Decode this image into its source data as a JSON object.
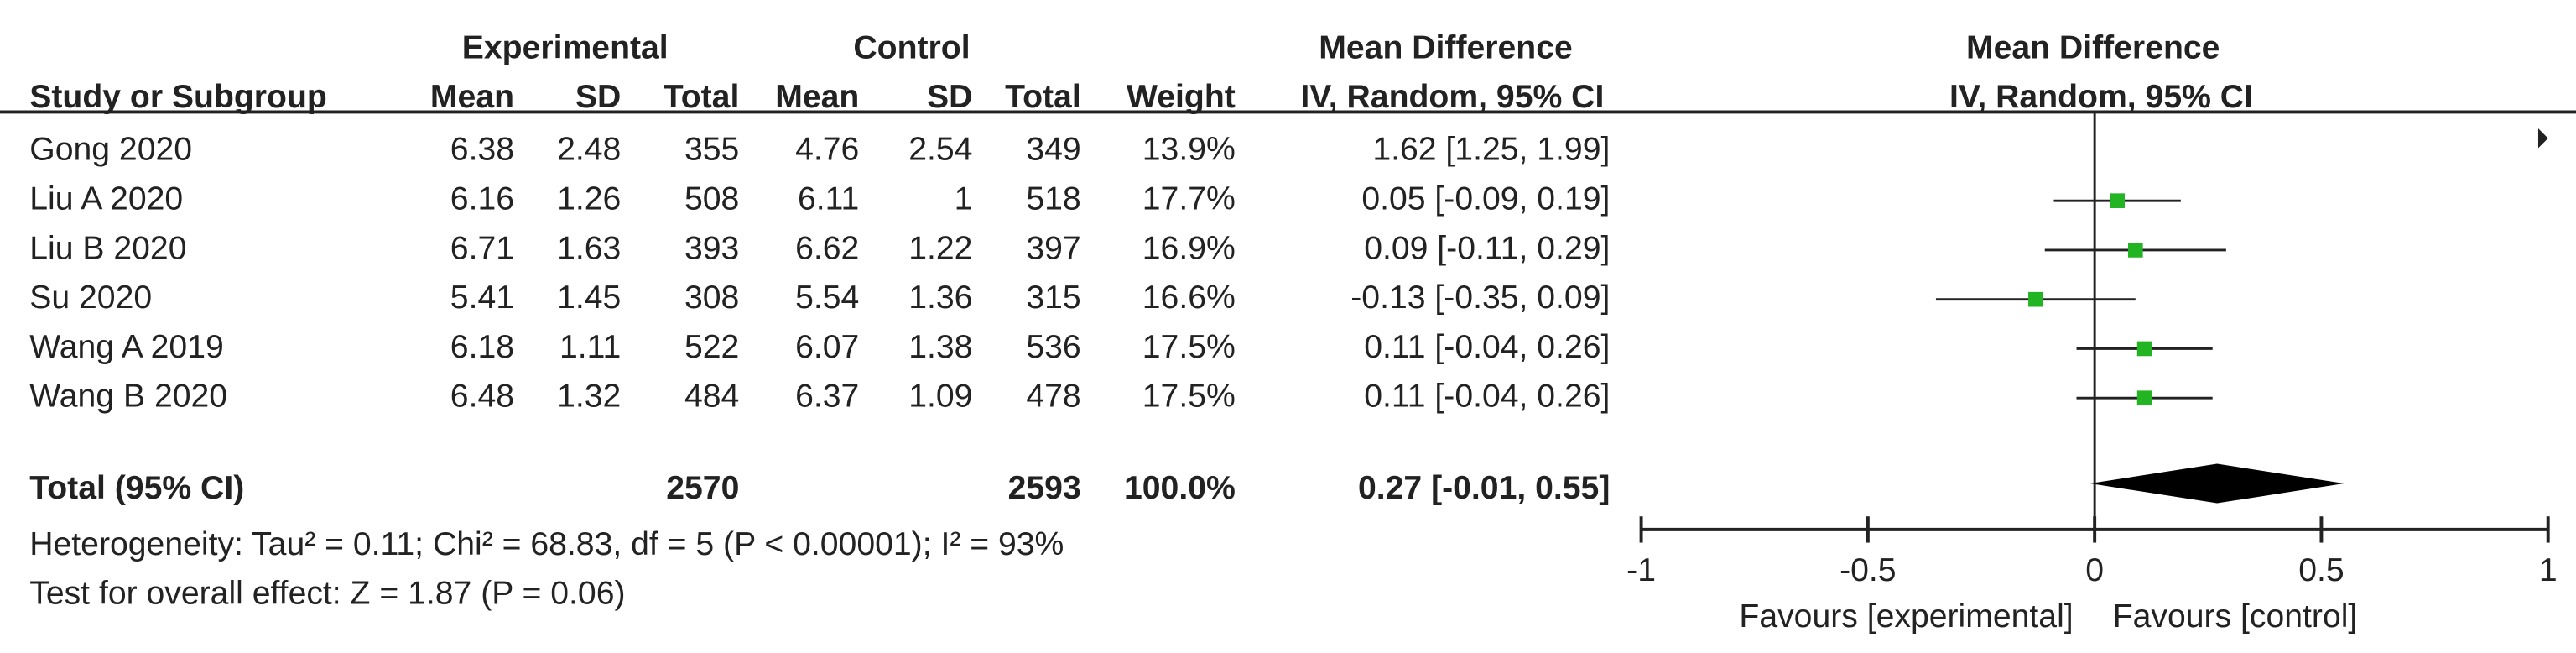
{
  "chart_data": {
    "type": "forest",
    "group_headers": [
      "Experimental",
      "Control"
    ],
    "effect_header": [
      "Mean Difference",
      "IV, Random, 95% CI"
    ],
    "plot_header": [
      "Mean Difference",
      "IV, Random, 95% CI"
    ],
    "columns": [
      "Study or Subgroup",
      "Mean",
      "SD",
      "Total",
      "Mean",
      "SD",
      "Total",
      "Weight"
    ],
    "rows": [
      [
        "Gong 2020",
        "6.38",
        "2.48",
        "355",
        "4.76",
        "2.54",
        "349",
        "13.9%",
        "1.62 [1.25, 1.99]"
      ],
      [
        "Liu A 2020",
        "6.16",
        "1.26",
        "508",
        "6.11",
        "1",
        "518",
        "17.7%",
        "0.05 [-0.09, 0.19]"
      ],
      [
        "Liu B 2020",
        "6.71",
        "1.63",
        "393",
        "6.62",
        "1.22",
        "397",
        "16.9%",
        "0.09 [-0.11, 0.29]"
      ],
      [
        "Su 2020",
        "5.41",
        "1.45",
        "308",
        "5.54",
        "1.36",
        "315",
        "16.6%",
        "-0.13 [-0.35, 0.09]"
      ],
      [
        "Wang A 2019",
        "6.18",
        "1.11",
        "522",
        "6.07",
        "1.38",
        "536",
        "17.5%",
        "0.11 [-0.04, 0.26]"
      ],
      [
        "Wang B 2020",
        "6.48",
        "1.32",
        "484",
        "6.37",
        "1.09",
        "478",
        "17.5%",
        "0.11 [-0.04, 0.26]"
      ]
    ],
    "md": [
      1.62,
      0.05,
      0.09,
      -0.13,
      0.11,
      0.11
    ],
    "lower": [
      1.25,
      -0.09,
      -0.11,
      -0.35,
      -0.04,
      -0.04
    ],
    "upper": [
      1.99,
      0.19,
      0.29,
      0.09,
      0.26,
      0.26
    ],
    "total": {
      "label": "Total (95% CI)",
      "exp_total": "2570",
      "ctrl_total": "2593",
      "weight": "100.0%",
      "ci_text": "0.27 [-0.01, 0.55]",
      "md": 0.27,
      "lower": -0.01,
      "upper": 0.55
    },
    "heterogeneity": "Heterogeneity: Tau² = 0.11; Chi² = 68.83, df = 5 (P < 0.00001); I² = 93%",
    "overall_effect": "Test for overall effect: Z = 1.87 (P = 0.06)",
    "xlim": [
      -1,
      1
    ],
    "xticks": [
      -1,
      -0.5,
      0,
      0.5,
      1
    ],
    "xlabels": [
      "Favours [experimental]",
      "Favours [control]"
    ],
    "color": "#22b422"
  }
}
